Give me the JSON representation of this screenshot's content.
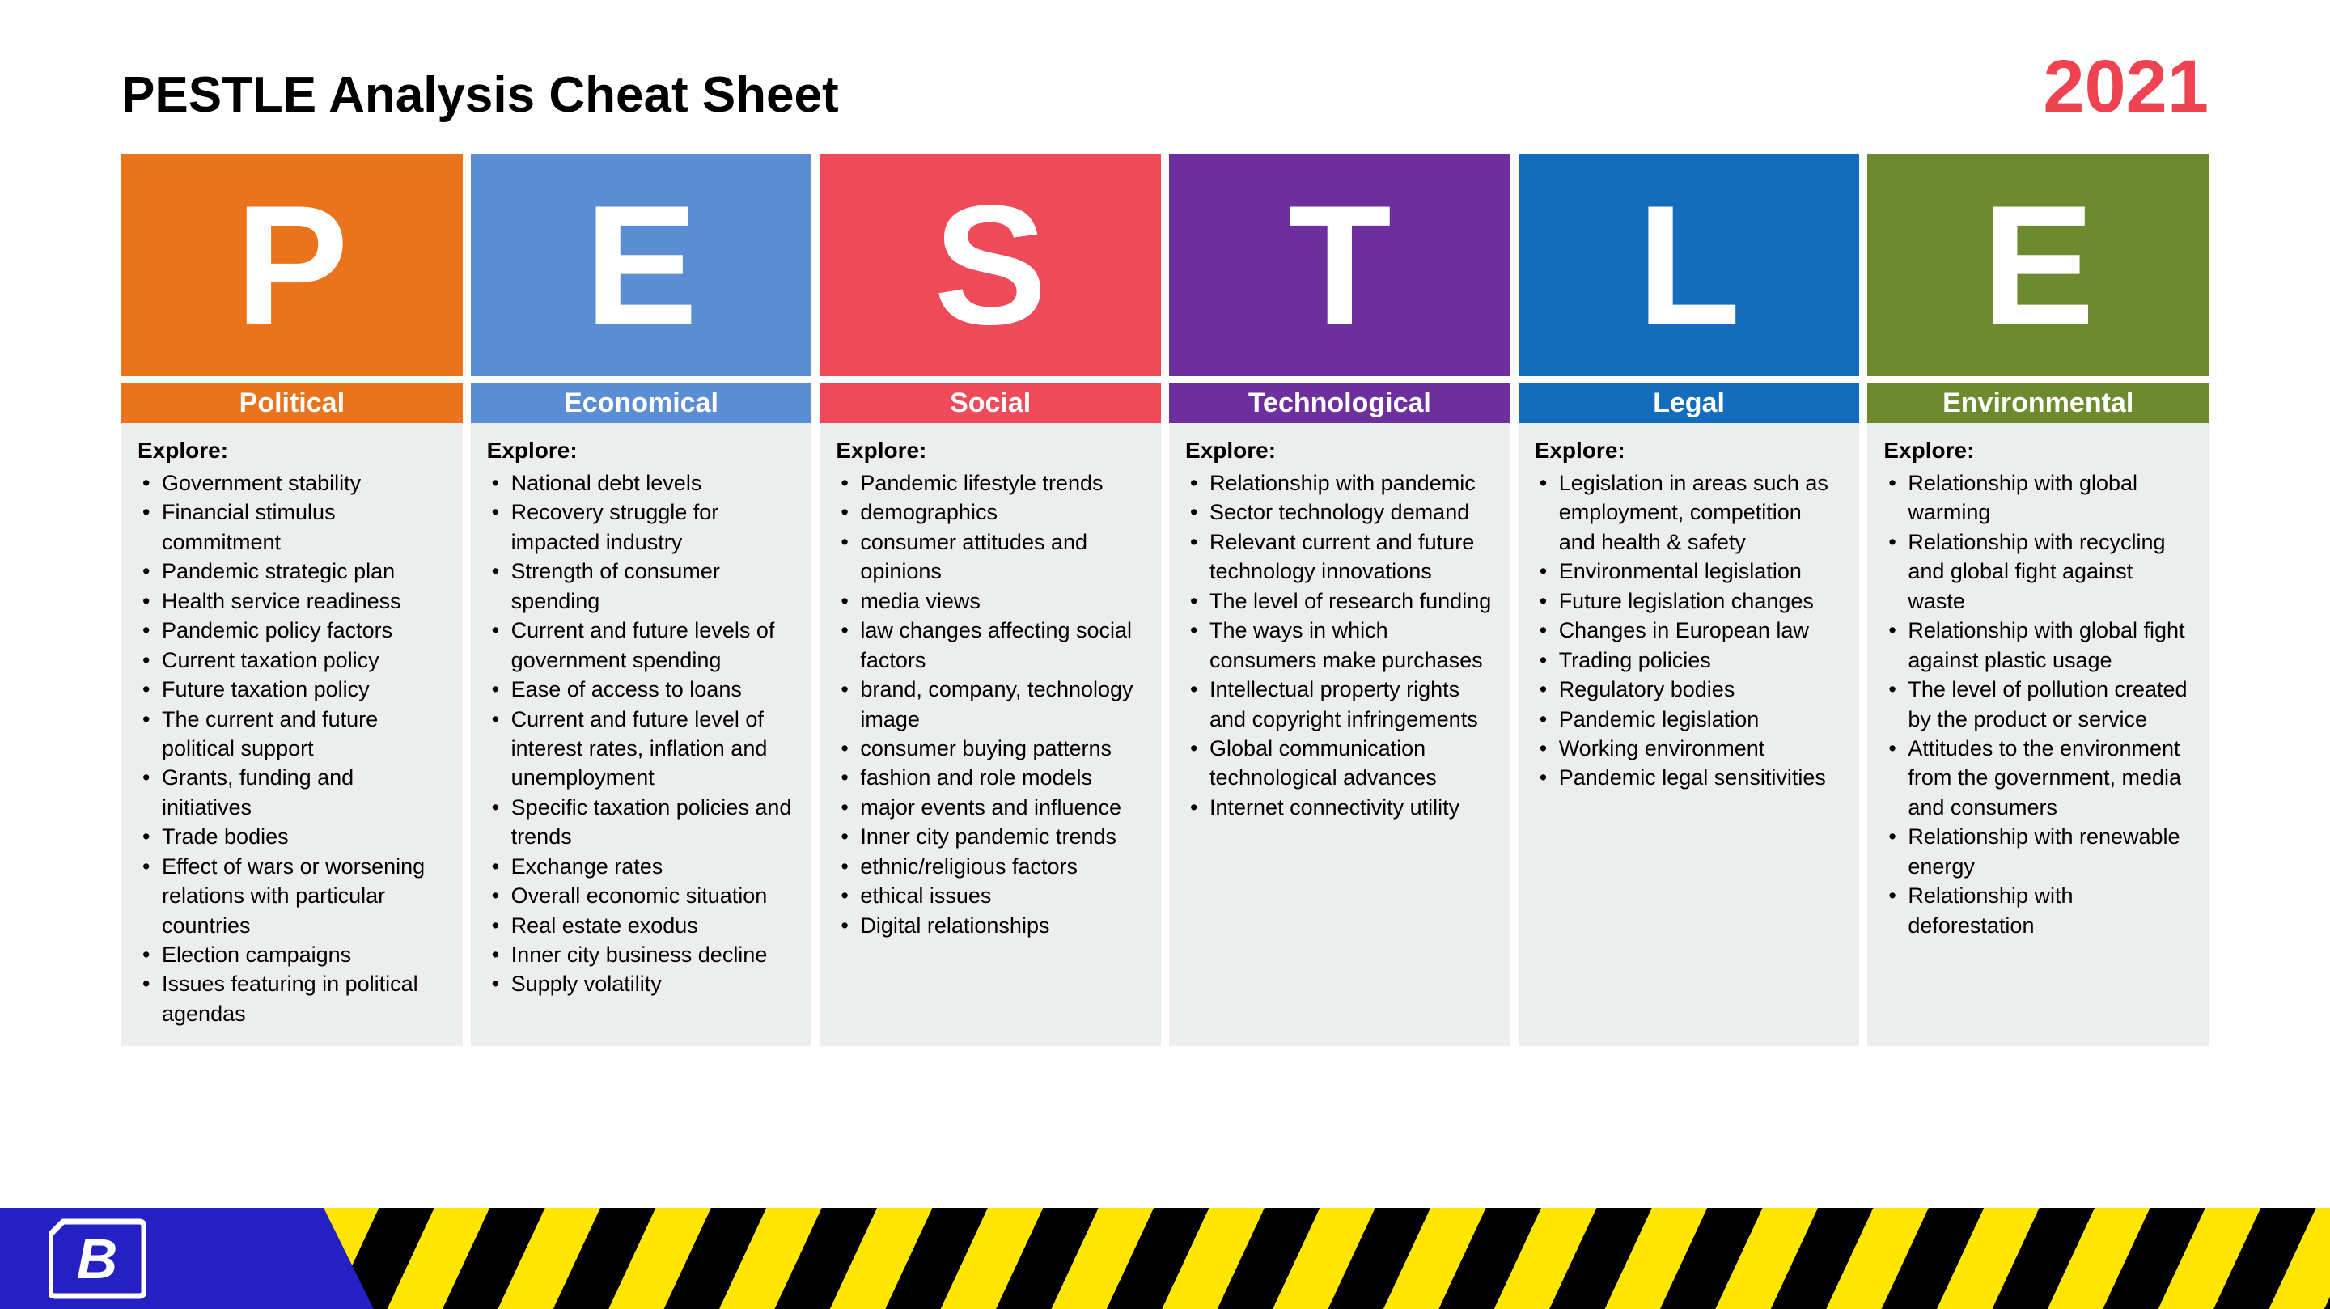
{
  "title": "PESTLE Analysis Cheat Sheet",
  "year": "2021",
  "year_color": "#ef4351",
  "explore_label": "Explore:",
  "body_bg": "#eceded",
  "footer": {
    "logo_bg": "#2520c4",
    "hazard_yellow": "#ffe600",
    "hazard_black": "#000000"
  },
  "columns": [
    {
      "letter": "P",
      "label": "Political",
      "color": "#e9741c",
      "items": [
        "Government stability",
        "Financial stimulus commitment",
        "Pandemic strategic plan",
        "Health service readiness",
        "Pandemic policy factors",
        "Current taxation policy",
        "Future taxation policy",
        "The current and future political support",
        "Grants, funding and initiatives",
        "Trade bodies",
        "Effect of wars or worsening relations with particular countries",
        "Election campaigns",
        "Issues featuring in political agendas"
      ]
    },
    {
      "letter": "E",
      "label": "Economical",
      "color": "#5b8dd5",
      "items": [
        "National debt levels",
        "Recovery struggle for impacted industry",
        "Strength of consumer spending",
        "Current and future levels of government spending",
        "Ease of access to loans",
        "Current and future level of interest rates, inflation and unemployment",
        "Specific taxation policies and trends",
        "Exchange rates",
        "Overall economic situation",
        "Real estate exodus",
        "Inner city business decline",
        "Supply volatility"
      ]
    },
    {
      "letter": "S",
      "label": "Social",
      "color": "#ee4a59",
      "items": [
        "Pandemic lifestyle trends",
        "demographics",
        "consumer attitudes and opinions",
        "media views",
        "law changes affecting social factors",
        "brand, company, technology image",
        "consumer buying patterns",
        "fashion and role models",
        "major events and influence",
        "Inner city pandemic trends",
        "ethnic/religious factors",
        "ethical issues",
        "Digital relationships"
      ]
    },
    {
      "letter": "T",
      "label": "Technological",
      "color": "#6e2f9e",
      "items": [
        "Relationship with pandemic",
        "Sector technology demand",
        "Relevant current and future technology innovations",
        "The level of research funding",
        "The ways in which consumers make purchases",
        "Intellectual property rights and copyright infringements",
        "Global communication technological advances",
        "Internet connectivity utility"
      ]
    },
    {
      "letter": "L",
      "label": "Legal",
      "color": "#146cbd",
      "items": [
        "Legislation in areas such as employment, competition and health & safety",
        "Environmental legislation",
        "Future legislation changes",
        "Changes in European law",
        "Trading policies",
        "Regulatory bodies",
        "Pandemic legislation",
        "Working environment",
        "Pandemic legal sensitivities"
      ]
    },
    {
      "letter": "E",
      "label": "Environmental",
      "color": "#6d8a2e",
      "items": [
        "Relationship with global warming",
        "Relationship with recycling and global fight against waste",
        "Relationship with global fight against plastic usage",
        "The level of pollution created by the product or service",
        "Attitudes to the environment from the government, media and consumers",
        "Relationship with renewable energy",
        "Relationship with deforestation"
      ]
    }
  ]
}
